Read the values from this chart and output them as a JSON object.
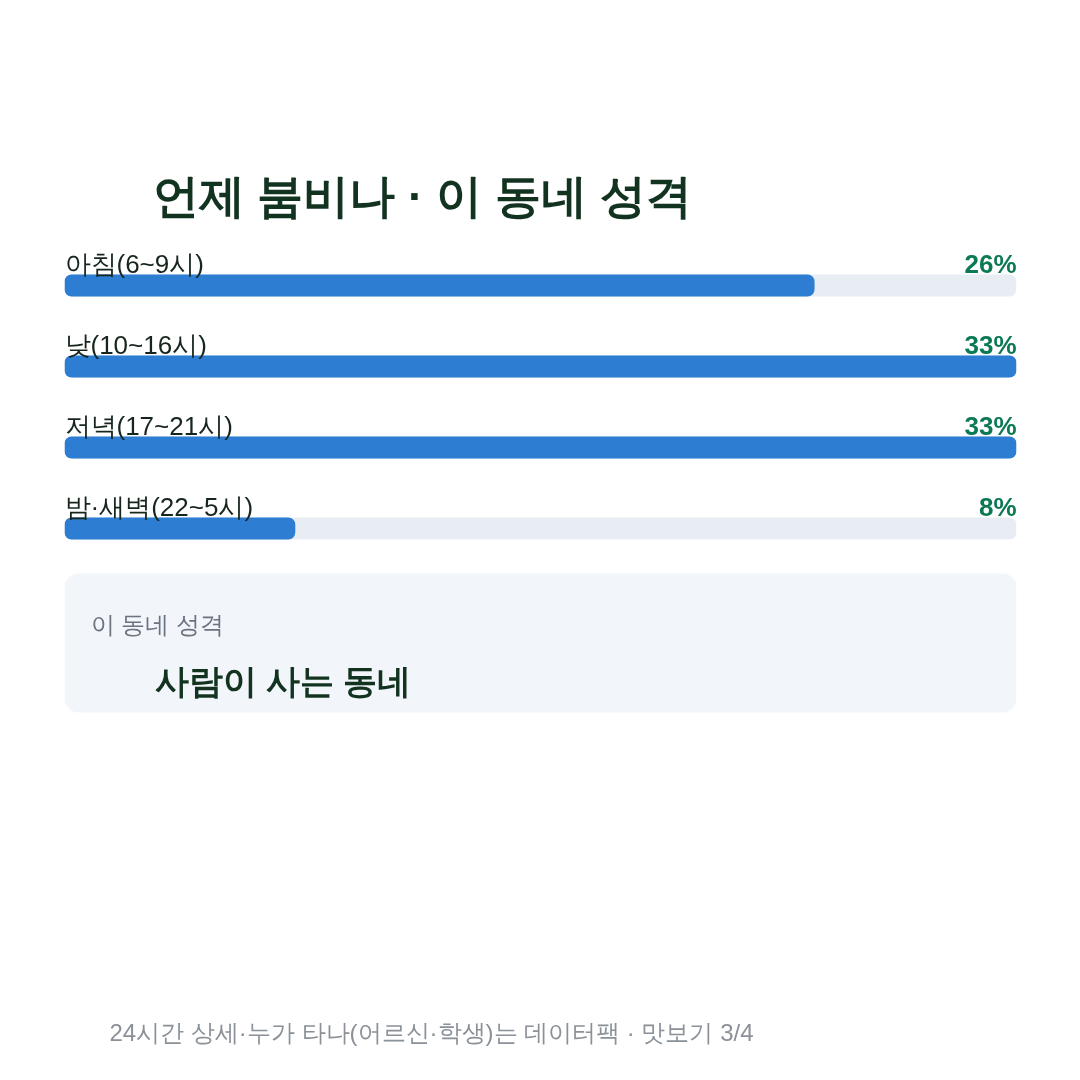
{
  "chart_data": {
    "type": "bar",
    "orientation": "horizontal",
    "title": "언제 붐비나 · 이 동네 성격",
    "categories": [
      "아침(6~9시)",
      "낮(10~16시)",
      "저녁(17~21시)",
      "밤·새벽(22~5시)"
    ],
    "values": [
      26,
      33,
      33,
      8
    ],
    "value_labels": [
      "26%",
      "33%",
      "33%",
      "8%"
    ],
    "color": "#2d7dd2",
    "annotations": [
      "이 동네 성격",
      "사람이 사는 동네",
      "24시간 상세·누가 타나(어르신·학생)는 데이터팩 · 맛보기 3/4"
    ]
  }
}
